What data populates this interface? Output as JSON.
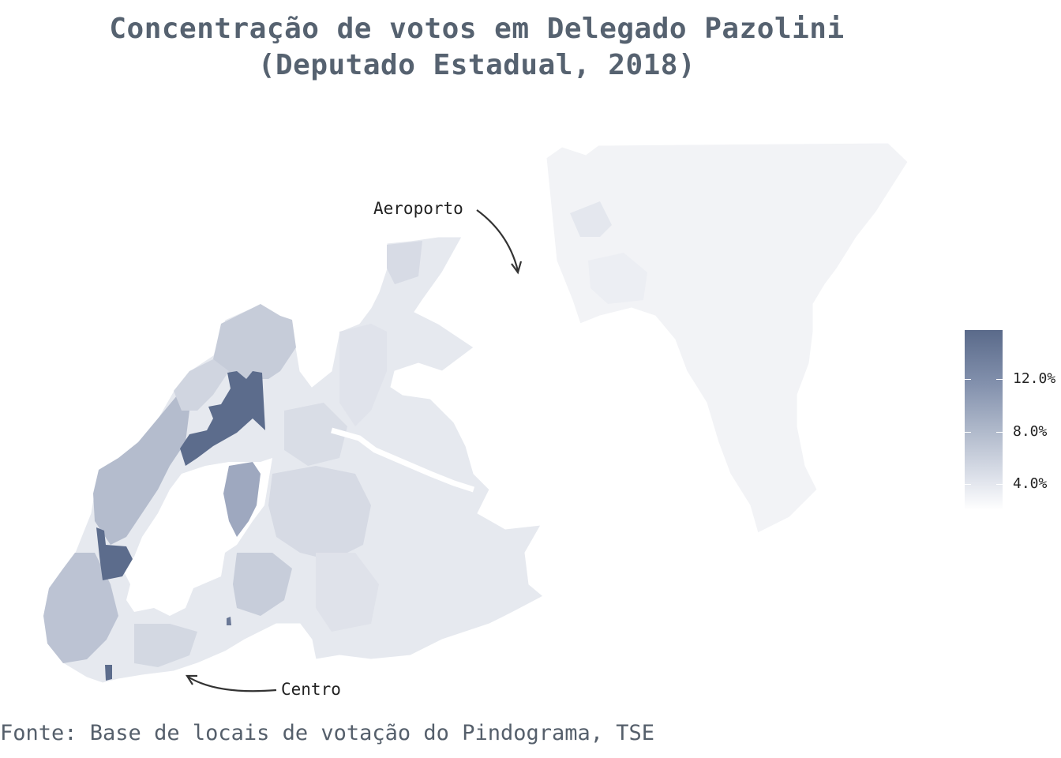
{
  "title": {
    "line1": "Concentração de votos em Delegado Pazolini",
    "line2": "(Deputado Estadual, 2018)"
  },
  "annotations": {
    "aeroporto": "Aeroporto",
    "centro": "Centro"
  },
  "legend": {
    "ticks": [
      "12.0%",
      "8.0%",
      "4.0%"
    ],
    "colors": {
      "high": "#5a6a8a",
      "mid": "#b3bccd",
      "low": "#ffffff"
    }
  },
  "source": "Fonte: Base de locais de votação do Pindograma, TSE",
  "colors": {
    "title": "#566270",
    "ultra_low": "#f2f3f6",
    "low": "#dde1ea",
    "mid": "#c4cad7",
    "mid_high": "#a9b2c5",
    "high": "#5a6a8a"
  }
}
